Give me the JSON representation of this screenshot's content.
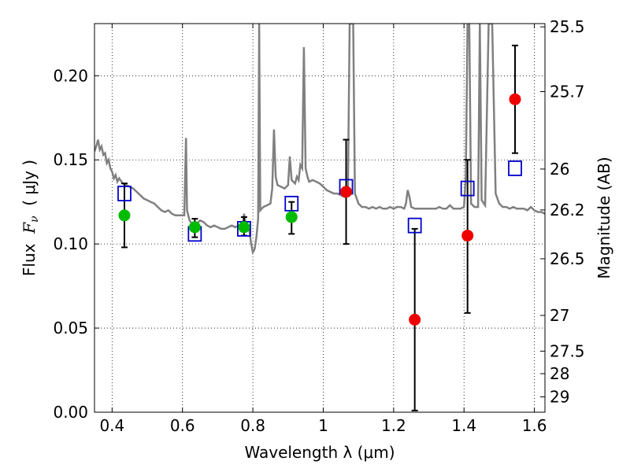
{
  "chart_data": {
    "type": "scatter",
    "xlabel": "Wavelength  λ (μm)",
    "ylabel_left_prefix": "Flux  ",
    "ylabel_left_symbol": "F",
    "ylabel_left_sub": "ν",
    "ylabel_left_suffix": "  ( μJy )",
    "ylabel_right": "Magnitude (AB)",
    "xlim": [
      0.35,
      1.63
    ],
    "ylim": [
      0.0,
      0.231
    ],
    "grid": true,
    "x_ticks": [
      {
        "v": 0.4,
        "label": "0.4"
      },
      {
        "v": 0.6,
        "label": "0.6"
      },
      {
        "v": 0.8,
        "label": "0.8"
      },
      {
        "v": 1.0,
        "label": "1"
      },
      {
        "v": 1.2,
        "label": "1.2"
      },
      {
        "v": 1.4,
        "label": "1.4"
      },
      {
        "v": 1.6,
        "label": "1.6"
      }
    ],
    "y_ticks": [
      {
        "v": 0.0,
        "label": "0.00"
      },
      {
        "v": 0.05,
        "label": "0.05"
      },
      {
        "v": 0.1,
        "label": "0.10"
      },
      {
        "v": 0.15,
        "label": "0.15"
      },
      {
        "v": 0.2,
        "label": "0.20"
      }
    ],
    "right_ticks": [
      {
        "mag": 25.5,
        "label": "25.5"
      },
      {
        "mag": 25.7,
        "label": "25.7"
      },
      {
        "mag": 26.0,
        "label": "26"
      },
      {
        "mag": 26.2,
        "label": "26.2"
      },
      {
        "mag": 26.5,
        "label": "26.5"
      },
      {
        "mag": 27.0,
        "label": "27"
      },
      {
        "mag": 27.5,
        "label": "27.5"
      },
      {
        "mag": 28.0,
        "label": "28"
      },
      {
        "mag": 29.0,
        "label": "29"
      }
    ],
    "colors": {
      "model": "#808080",
      "green": "#00bb00",
      "red": "#ee0000",
      "box": "#0000cc",
      "errorbar": "#000000"
    },
    "model_spectrum": [
      [
        0.35,
        0.155
      ],
      [
        0.355,
        0.158
      ],
      [
        0.36,
        0.162
      ],
      [
        0.365,
        0.156
      ],
      [
        0.37,
        0.158
      ],
      [
        0.375,
        0.153
      ],
      [
        0.38,
        0.154
      ],
      [
        0.385,
        0.148
      ],
      [
        0.39,
        0.15
      ],
      [
        0.395,
        0.145
      ],
      [
        0.4,
        0.143
      ],
      [
        0.405,
        0.139
      ],
      [
        0.41,
        0.141
      ],
      [
        0.415,
        0.137
      ],
      [
        0.42,
        0.139
      ],
      [
        0.43,
        0.136
      ],
      [
        0.44,
        0.135
      ],
      [
        0.45,
        0.134
      ],
      [
        0.46,
        0.133
      ],
      [
        0.47,
        0.131
      ],
      [
        0.48,
        0.129
      ],
      [
        0.49,
        0.127
      ],
      [
        0.5,
        0.126
      ],
      [
        0.51,
        0.125
      ],
      [
        0.52,
        0.124
      ],
      [
        0.53,
        0.122
      ],
      [
        0.54,
        0.12
      ],
      [
        0.55,
        0.119
      ],
      [
        0.56,
        0.12
      ],
      [
        0.57,
        0.118
      ],
      [
        0.58,
        0.117
      ],
      [
        0.59,
        0.117
      ],
      [
        0.6,
        0.117
      ],
      [
        0.605,
        0.117
      ],
      [
        0.61,
        0.163
      ],
      [
        0.613,
        0.12
      ],
      [
        0.62,
        0.114
      ],
      [
        0.63,
        0.111
      ],
      [
        0.64,
        0.112
      ],
      [
        0.65,
        0.114
      ],
      [
        0.66,
        0.113
      ],
      [
        0.67,
        0.111
      ],
      [
        0.68,
        0.11
      ],
      [
        0.69,
        0.111
      ],
      [
        0.7,
        0.11
      ],
      [
        0.71,
        0.109
      ],
      [
        0.72,
        0.109
      ],
      [
        0.73,
        0.11
      ],
      [
        0.74,
        0.111
      ],
      [
        0.75,
        0.11
      ],
      [
        0.76,
        0.111
      ],
      [
        0.77,
        0.11
      ],
      [
        0.775,
        0.118
      ],
      [
        0.78,
        0.112
      ],
      [
        0.79,
        0.108
      ],
      [
        0.795,
        0.1
      ],
      [
        0.8,
        0.095
      ],
      [
        0.805,
        0.097
      ],
      [
        0.81,
        0.104
      ],
      [
        0.815,
        0.115
      ],
      [
        0.818,
        0.231
      ],
      [
        0.821,
        0.12
      ],
      [
        0.825,
        0.121
      ],
      [
        0.83,
        0.122
      ],
      [
        0.84,
        0.123
      ],
      [
        0.85,
        0.124
      ],
      [
        0.855,
        0.133
      ],
      [
        0.86,
        0.168
      ],
      [
        0.865,
        0.14
      ],
      [
        0.87,
        0.135
      ],
      [
        0.88,
        0.134
      ],
      [
        0.89,
        0.133
      ],
      [
        0.9,
        0.135
      ],
      [
        0.905,
        0.152
      ],
      [
        0.91,
        0.138
      ],
      [
        0.92,
        0.136
      ],
      [
        0.925,
        0.14
      ],
      [
        0.93,
        0.138
      ],
      [
        0.935,
        0.147
      ],
      [
        0.94,
        0.145
      ],
      [
        0.945,
        0.217
      ],
      [
        0.95,
        0.145
      ],
      [
        0.955,
        0.14
      ],
      [
        0.96,
        0.137
      ],
      [
        0.97,
        0.138
      ],
      [
        0.98,
        0.137
      ],
      [
        0.99,
        0.136
      ],
      [
        1.0,
        0.134
      ],
      [
        1.01,
        0.132
      ],
      [
        1.02,
        0.131
      ],
      [
        1.03,
        0.13
      ],
      [
        1.04,
        0.13
      ],
      [
        1.05,
        0.129
      ],
      [
        1.06,
        0.128
      ],
      [
        1.07,
        0.131
      ],
      [
        1.075,
        0.231
      ],
      [
        1.085,
        0.231
      ],
      [
        1.09,
        0.13
      ],
      [
        1.1,
        0.124
      ],
      [
        1.11,
        0.122
      ],
      [
        1.12,
        0.122
      ],
      [
        1.13,
        0.121
      ],
      [
        1.14,
        0.122
      ],
      [
        1.15,
        0.121
      ],
      [
        1.16,
        0.122
      ],
      [
        1.17,
        0.121
      ],
      [
        1.18,
        0.121
      ],
      [
        1.19,
        0.122
      ],
      [
        1.2,
        0.121
      ],
      [
        1.21,
        0.122
      ],
      [
        1.22,
        0.122
      ],
      [
        1.23,
        0.121
      ],
      [
        1.235,
        0.124
      ],
      [
        1.24,
        0.132
      ],
      [
        1.245,
        0.128
      ],
      [
        1.25,
        0.122
      ],
      [
        1.26,
        0.121
      ],
      [
        1.27,
        0.121
      ],
      [
        1.28,
        0.121
      ],
      [
        1.29,
        0.121
      ],
      [
        1.3,
        0.121
      ],
      [
        1.31,
        0.121
      ],
      [
        1.32,
        0.121
      ],
      [
        1.33,
        0.122
      ],
      [
        1.34,
        0.121
      ],
      [
        1.35,
        0.121
      ],
      [
        1.36,
        0.123
      ],
      [
        1.37,
        0.121
      ],
      [
        1.38,
        0.121
      ],
      [
        1.39,
        0.121
      ],
      [
        1.4,
        0.122
      ],
      [
        1.405,
        0.14
      ],
      [
        1.41,
        0.231
      ],
      [
        1.415,
        0.231
      ],
      [
        1.42,
        0.124
      ],
      [
        1.43,
        0.122
      ],
      [
        1.44,
        0.122
      ],
      [
        1.445,
        0.231
      ],
      [
        1.45,
        0.126
      ],
      [
        1.46,
        0.123
      ],
      [
        1.47,
        0.231
      ],
      [
        1.48,
        0.231
      ],
      [
        1.49,
        0.13
      ],
      [
        1.5,
        0.124
      ],
      [
        1.51,
        0.122
      ],
      [
        1.52,
        0.122
      ],
      [
        1.53,
        0.121
      ],
      [
        1.54,
        0.122
      ],
      [
        1.55,
        0.121
      ],
      [
        1.56,
        0.121
      ],
      [
        1.57,
        0.121
      ],
      [
        1.58,
        0.12
      ],
      [
        1.59,
        0.122
      ],
      [
        1.6,
        0.12
      ],
      [
        1.61,
        0.119
      ],
      [
        1.62,
        0.119
      ],
      [
        1.63,
        0.118
      ]
    ],
    "model_photometry": [
      {
        "x": 0.435,
        "y": 0.13
      },
      {
        "x": 0.635,
        "y": 0.106
      },
      {
        "x": 0.775,
        "y": 0.109
      },
      {
        "x": 0.91,
        "y": 0.124
      },
      {
        "x": 1.065,
        "y": 0.134
      },
      {
        "x": 1.26,
        "y": 0.111
      },
      {
        "x": 1.41,
        "y": 0.133
      },
      {
        "x": 1.545,
        "y": 0.145
      }
    ],
    "observed_green": [
      {
        "x": 0.435,
        "y": 0.117,
        "err_lo": 0.098,
        "err_hi": 0.136
      },
      {
        "x": 0.635,
        "y": 0.11,
        "err_lo": 0.104,
        "err_hi": 0.115
      },
      {
        "x": 0.775,
        "y": 0.11,
        "err_lo": 0.105,
        "err_hi": 0.116
      },
      {
        "x": 0.91,
        "y": 0.116,
        "err_lo": 0.106,
        "err_hi": 0.125
      }
    ],
    "observed_red": [
      {
        "x": 1.065,
        "y": 0.131,
        "err_lo": 0.1,
        "err_hi": 0.162
      },
      {
        "x": 1.26,
        "y": 0.055,
        "err_lo": 0.001,
        "err_hi": 0.109
      },
      {
        "x": 1.41,
        "y": 0.105,
        "err_lo": 0.059,
        "err_hi": 0.15
      },
      {
        "x": 1.545,
        "y": 0.186,
        "err_lo": 0.154,
        "err_hi": 0.218
      }
    ]
  }
}
